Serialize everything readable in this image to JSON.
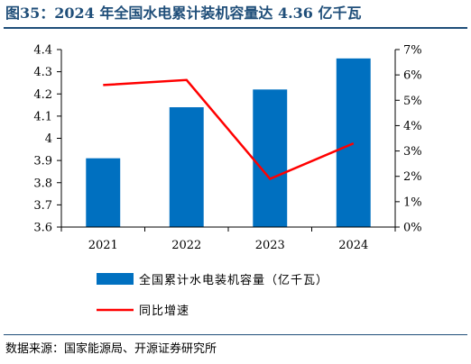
{
  "title": "图35：2024 年全国水电累计装机容量达 4.36 亿千瓦",
  "source": "数据来源：国家能源局、开源证券研究所",
  "chart_data": {
    "type": "bar",
    "categories": [
      "2021",
      "2022",
      "2023",
      "2024"
    ],
    "series": [
      {
        "name": "全国累计水电装机容量（亿千瓦）",
        "type": "bar",
        "axis": "left",
        "color": "#0070c0",
        "values": [
          3.91,
          4.14,
          4.22,
          4.36
        ]
      },
      {
        "name": "同比增速",
        "type": "line",
        "axis": "right",
        "color": "#ff0000",
        "values": [
          5.6,
          5.8,
          1.9,
          3.3
        ]
      }
    ],
    "ylim": [
      3.6,
      4.4
    ],
    "yticks": [
      "3.6",
      "3.7",
      "3.8",
      "3.9",
      "4",
      "4.1",
      "4.2",
      "4.3",
      "4.4"
    ],
    "y2lim": [
      0,
      7
    ],
    "y2ticks": [
      "0%",
      "1%",
      "2%",
      "3%",
      "4%",
      "5%",
      "6%",
      "7%"
    ],
    "grid": false,
    "legend": "bottom"
  }
}
